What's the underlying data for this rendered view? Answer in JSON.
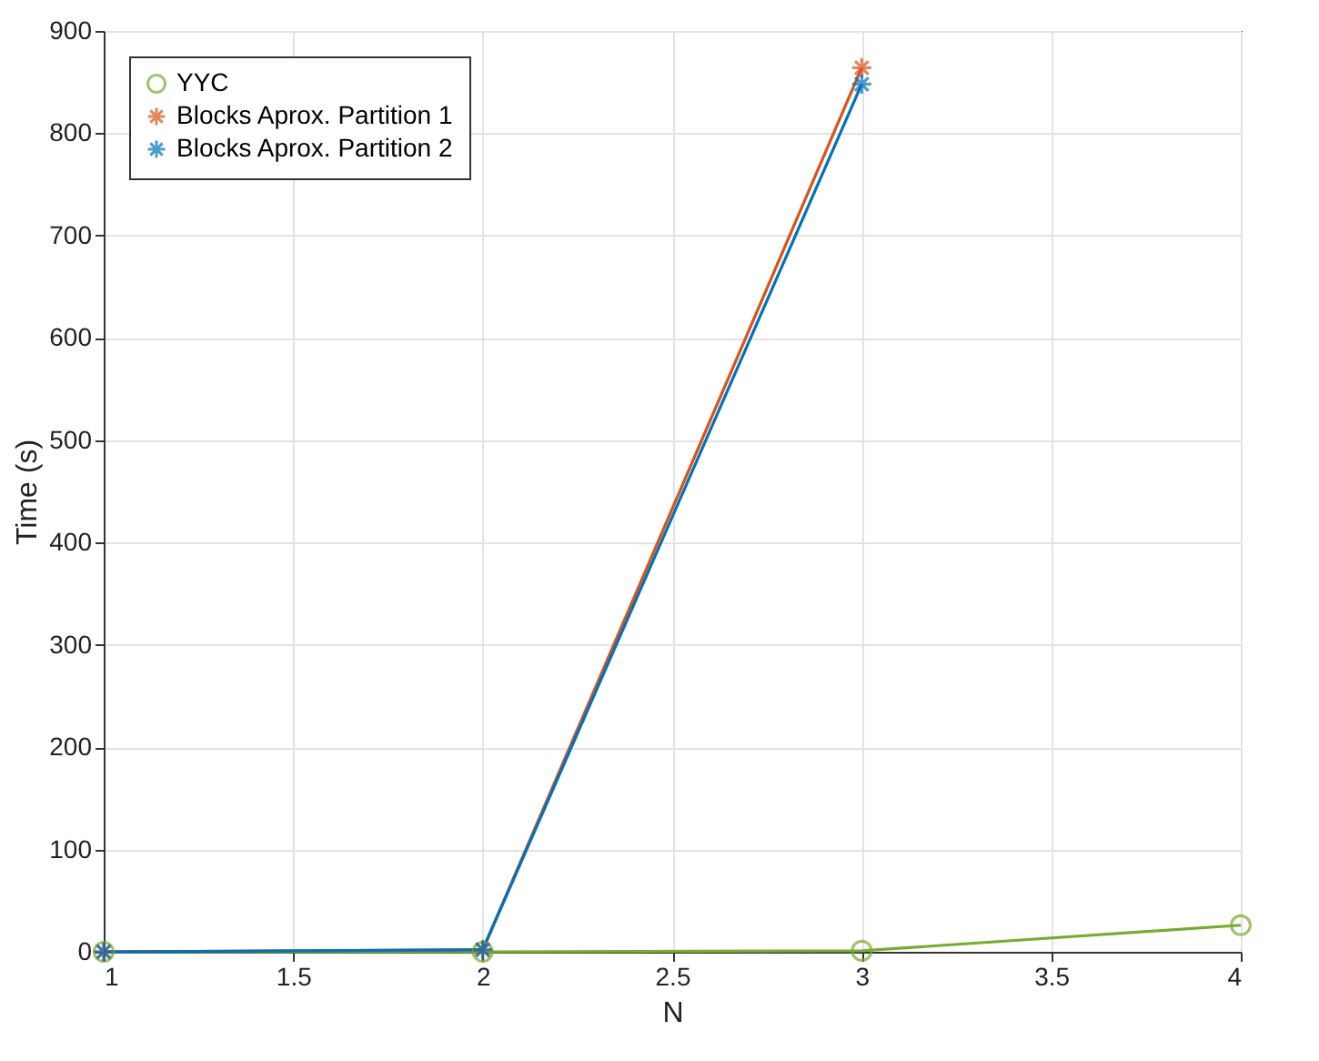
{
  "chart_data": {
    "type": "line",
    "xlabel": "N",
    "ylabel": "Time (s)",
    "xlim": [
      1,
      4
    ],
    "ylim": [
      0,
      900
    ],
    "xticks": [
      1,
      1.5,
      2,
      2.5,
      3,
      3.5,
      4
    ],
    "yticks": [
      0,
      100,
      200,
      300,
      400,
      500,
      600,
      700,
      800,
      900
    ],
    "grid": true,
    "legend": "top left",
    "series": [
      {
        "name": "YYC",
        "color": "#77ac30",
        "marker": "circle",
        "x": [
          1,
          2,
          3,
          4
        ],
        "values": [
          0,
          0,
          1,
          26
        ]
      },
      {
        "name": "Blocks Aprox. Partition 1",
        "color": "#d95319",
        "marker": "cross",
        "x": [
          1,
          2,
          3
        ],
        "values": [
          0,
          2,
          864
        ]
      },
      {
        "name": "Blocks Aprox. Partition 2",
        "color": "#0072bd",
        "marker": "cross",
        "x": [
          1,
          2,
          3
        ],
        "values": [
          0,
          2,
          848
        ]
      }
    ]
  }
}
